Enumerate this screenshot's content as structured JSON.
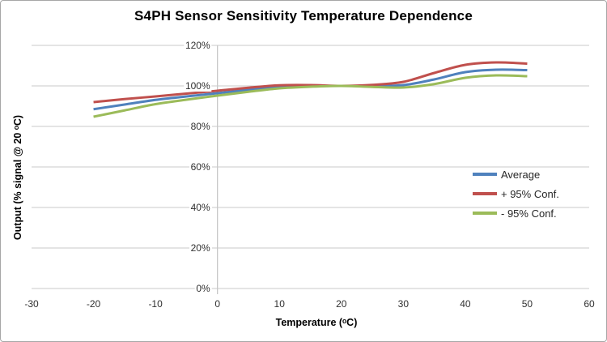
{
  "chart_data": {
    "type": "line",
    "title": "S4PH Sensor Sensitivity Temperature Dependence",
    "xlabel": "Temperature (ᵒC)",
    "ylabel": "Output (% signal @ 20 ᵒC)",
    "x": [
      -20,
      -15,
      -10,
      -5,
      0,
      5,
      10,
      15,
      20,
      25,
      30,
      35,
      40,
      45,
      50
    ],
    "series": [
      {
        "name": "Average",
        "color": "#4F81BD",
        "values": [
          88.5,
          90.8,
          93.1,
          94.8,
          96.4,
          98.1,
          99.6,
          100.0,
          100.0,
          100.0,
          100.4,
          103.2,
          106.8,
          108.0,
          107.8
        ]
      },
      {
        "name": "+ 95% Conf.",
        "color": "#C0504D",
        "values": [
          92.0,
          93.5,
          94.8,
          96.2,
          97.6,
          99.1,
          100.3,
          100.4,
          100.0,
          100.5,
          102.0,
          106.4,
          110.4,
          111.6,
          111.0
        ]
      },
      {
        "name": "- 95% Conf.",
        "color": "#9BBB59",
        "values": [
          84.8,
          87.9,
          91.0,
          93.2,
          95.2,
          97.1,
          98.8,
          99.6,
          100.0,
          99.5,
          99.2,
          100.9,
          104.0,
          105.2,
          104.8
        ]
      }
    ],
    "xlim": [
      -30,
      60
    ],
    "ylim": [
      0,
      120
    ],
    "x_ticks": [
      -30,
      -20,
      -10,
      0,
      10,
      20,
      30,
      40,
      50,
      60
    ],
    "y_ticks": [
      {
        "value": 0,
        "label": "0%"
      },
      {
        "value": 20,
        "label": "20%"
      },
      {
        "value": 40,
        "label": "40%"
      },
      {
        "value": 60,
        "label": "60%"
      },
      {
        "value": 80,
        "label": "80%"
      },
      {
        "value": 100,
        "label": "100%"
      },
      {
        "value": 120,
        "label": "120%"
      }
    ],
    "grid": "horizontal-only",
    "legend_position": "middle-right",
    "y_axis_cross_at_x": 0,
    "line_smoothing": true
  },
  "styles": {
    "grid_color": "#D3D3D3",
    "axis_color": "#C8C8C8",
    "tick_text_color": "#303030",
    "title_color": "#000000",
    "border_color": "#A6A6A6",
    "background": "#FFFFFF"
  }
}
